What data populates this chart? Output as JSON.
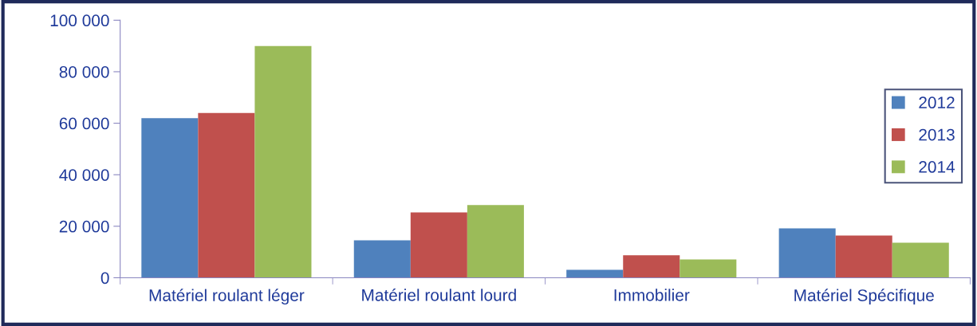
{
  "chart_data": {
    "type": "bar",
    "categories": [
      "Matériel roulant léger",
      "Matériel roulant lourd",
      "Immobilier",
      "Matériel Spécifique"
    ],
    "series": [
      {
        "name": "2012",
        "color": "#4f81bd",
        "values": [
          62000,
          14500,
          3100,
          19200
        ]
      },
      {
        "name": "2013",
        "color": "#c0504d",
        "values": [
          64000,
          25400,
          8700,
          16400
        ]
      },
      {
        "name": "2014",
        "color": "#9bbb59",
        "values": [
          90000,
          28200,
          7100,
          13600
        ]
      }
    ],
    "ylim": [
      0,
      100000
    ],
    "yticks": [
      {
        "value": 0,
        "label": "0"
      },
      {
        "value": 20000,
        "label": "20 000"
      },
      {
        "value": 40000,
        "label": "40 000"
      },
      {
        "value": 60000,
        "label": "60 000"
      },
      {
        "value": 80000,
        "label": "80 000"
      },
      {
        "value": 100000,
        "label": "100 000"
      }
    ],
    "grid": false,
    "legend": "right"
  }
}
